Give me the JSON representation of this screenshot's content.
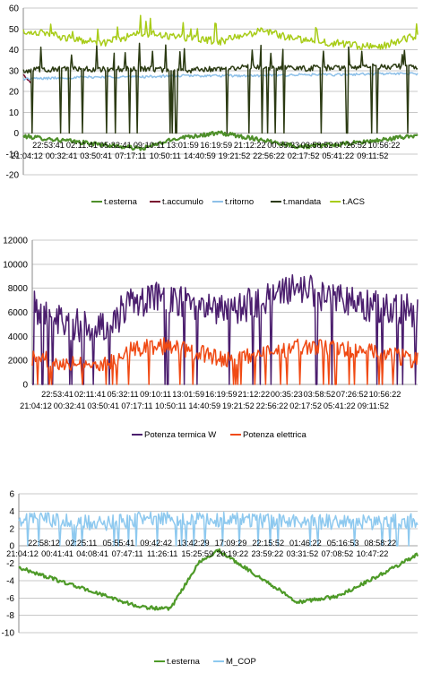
{
  "chart_data": [
    {
      "type": "line",
      "ylim": [
        -20,
        60
      ],
      "yticks": [
        -20,
        -10,
        0,
        10,
        20,
        30,
        40,
        50,
        60
      ],
      "grid": true,
      "legend_position": "bottom",
      "xtick_row1": [
        "22:53:41",
        "02:11:41",
        "05:32:41",
        "09:10:11",
        "13:01:59",
        "16:19:59",
        "21:12:22",
        "00:35:23",
        "03:58:52",
        "07:26:52",
        "10:56:22"
      ],
      "xtick_row2": [
        "21:04:12",
        "00:32:41",
        "03:50:41",
        "07:17:11",
        "10:50:11",
        "14:40:59",
        "19:21:52",
        "22:56:22",
        "02:17:52",
        "05:41:22",
        "09:11:52"
      ],
      "series": [
        {
          "name": "t.esterna",
          "color": "#4e8f2a",
          "x": [
            0,
            0.1,
            0.2,
            0.3,
            0.4,
            0.5,
            0.6,
            0.7,
            0.8,
            0.9,
            1.0
          ],
          "y": [
            -1.5,
            -3.5,
            -5.5,
            -7.5,
            -2,
            0,
            -3,
            -6.5,
            -5.5,
            -3.5,
            -1
          ]
        },
        {
          "name": "t.accumulo",
          "color": "#7a1030",
          "x": [
            0,
            0.01,
            0.02
          ],
          "y": [
            28,
            26,
            24
          ]
        },
        {
          "name": "t.ritorno",
          "color": "#8ec0e8",
          "x": [
            0,
            0.1,
            0.2,
            0.3,
            0.4,
            0.5,
            0.6,
            0.7,
            0.8,
            0.9,
            1.0
          ],
          "y": [
            26,
            26.5,
            27,
            27,
            27.5,
            27.5,
            27.5,
            28,
            28,
            28.5,
            28.5
          ]
        },
        {
          "name": "t.mandata",
          "color": "#2b3a12",
          "x": [
            0,
            0.1,
            0.2,
            0.3,
            0.4,
            0.5,
            0.6,
            0.7,
            0.8,
            0.9,
            1.0
          ],
          "y": [
            30,
            31,
            30.5,
            31,
            30,
            31,
            32,
            31,
            31.5,
            32,
            32
          ]
        },
        {
          "name": "t.ACS",
          "color": "#a8cc18",
          "x": [
            0,
            0.05,
            0.1,
            0.2,
            0.3,
            0.4,
            0.5,
            0.6,
            0.7,
            0.8,
            0.9,
            1.0
          ],
          "y": [
            49,
            48,
            46,
            43,
            48,
            46,
            44,
            49,
            45,
            43,
            41,
            47
          ]
        }
      ]
    },
    {
      "type": "line",
      "ylim": [
        0,
        12000
      ],
      "yticks": [
        0,
        2000,
        4000,
        6000,
        8000,
        10000,
        12000
      ],
      "grid": true,
      "legend_position": "bottom",
      "xtick_row1": [
        "22:53:41",
        "02:11:41",
        "05:32:11",
        "09:10:11",
        "13:01:59",
        "16:19:59",
        "21:12:22",
        "00:35:23",
        "03:58:52",
        "07:26:52",
        "10:56:22"
      ],
      "xtick_row2": [
        "21:04:12",
        "00:32:41",
        "03:50:41",
        "07:17:11",
        "10:50:11",
        "14:40:59",
        "19:21:52",
        "22:56:22",
        "02:17:52",
        "05:41:22",
        "09:11:52"
      ],
      "series": [
        {
          "name": "Potenza termica W",
          "color": "#4b1e6e",
          "x": [
            0,
            0.1,
            0.2,
            0.25,
            0.35,
            0.45,
            0.5,
            0.6,
            0.7,
            0.8,
            0.9,
            1.0
          ],
          "y": [
            6500,
            5000,
            4700,
            6800,
            7200,
            6500,
            6000,
            7000,
            8000,
            7000,
            6500,
            6000
          ]
        },
        {
          "name": "Potenza elettrica",
          "color": "#f04a14",
          "x": [
            0,
            0.1,
            0.2,
            0.25,
            0.35,
            0.45,
            0.5,
            0.6,
            0.7,
            0.8,
            0.9,
            1.0
          ],
          "y": [
            2200,
            1800,
            1700,
            3000,
            3200,
            2500,
            2000,
            2500,
            3200,
            3000,
            2600,
            2000
          ]
        }
      ]
    },
    {
      "type": "line",
      "ylim": [
        -10,
        6
      ],
      "yticks": [
        -10,
        -8,
        -6,
        -4,
        -2,
        0,
        2,
        4,
        6
      ],
      "grid": true,
      "legend_position": "bottom",
      "xtick_row1": [
        "22:58:12",
        "02:25:11",
        "05:55:41",
        "09:42:42",
        "13:42:29",
        "17:09:29",
        "22:15:52",
        "01:46:22",
        "05:16:53",
        "08:58:22"
      ],
      "xtick_row2": [
        "21:04:12",
        "00:41:41",
        "04:08:41",
        "07:47:11",
        "11:26:11",
        "15:25:59",
        "20:19:22",
        "23:59:22",
        "03:31:52",
        "07:08:52",
        "10:47:22"
      ],
      "series": [
        {
          "name": "t.esterna",
          "color": "#4e9a28",
          "x": [
            0,
            0.1,
            0.2,
            0.3,
            0.38,
            0.45,
            0.5,
            0.6,
            0.7,
            0.8,
            0.9,
            1.0
          ],
          "y": [
            -2.5,
            -4,
            -5.5,
            -7,
            -7.3,
            -2,
            -0.5,
            -3.5,
            -6.5,
            -5.8,
            -3.5,
            -1
          ]
        },
        {
          "name": "M_COP",
          "color": "#8ec9ef",
          "x": [
            0,
            0.1,
            0.2,
            0.3,
            0.4,
            0.5,
            0.6,
            0.7,
            0.8,
            0.9,
            1.0
          ],
          "y": [
            3,
            3,
            2.5,
            3,
            3,
            3,
            3,
            2.7,
            2.8,
            2.7,
            3
          ]
        }
      ]
    }
  ]
}
